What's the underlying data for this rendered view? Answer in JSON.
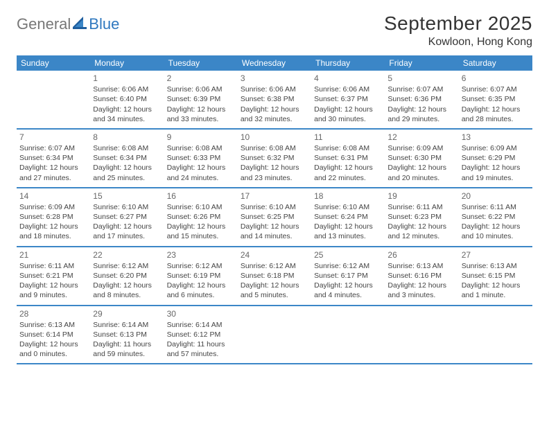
{
  "logo": {
    "text1": "General",
    "text2": "Blue"
  },
  "title": "September 2025",
  "location": "Kowloon, Hong Kong",
  "colors": {
    "header_bg": "#3b86c7",
    "header_text": "#ffffff",
    "rule": "#3b86c7",
    "logo_gray": "#777777",
    "logo_blue": "#2f78bf",
    "body_text": "#444444",
    "daynum": "#666666",
    "background": "#ffffff"
  },
  "typography": {
    "title_fontsize": 28,
    "location_fontsize": 16,
    "weekday_fontsize": 12,
    "daynum_fontsize": 12,
    "body_fontsize": 10.5,
    "logo_fontsize": 22
  },
  "weekdays": [
    "Sunday",
    "Monday",
    "Tuesday",
    "Wednesday",
    "Thursday",
    "Friday",
    "Saturday"
  ],
  "weeks": [
    [
      {
        "num": "",
        "lines": []
      },
      {
        "num": "1",
        "lines": [
          "Sunrise: 6:06 AM",
          "Sunset: 6:40 PM",
          "Daylight: 12 hours and 34 minutes."
        ]
      },
      {
        "num": "2",
        "lines": [
          "Sunrise: 6:06 AM",
          "Sunset: 6:39 PM",
          "Daylight: 12 hours and 33 minutes."
        ]
      },
      {
        "num": "3",
        "lines": [
          "Sunrise: 6:06 AM",
          "Sunset: 6:38 PM",
          "Daylight: 12 hours and 32 minutes."
        ]
      },
      {
        "num": "4",
        "lines": [
          "Sunrise: 6:06 AM",
          "Sunset: 6:37 PM",
          "Daylight: 12 hours and 30 minutes."
        ]
      },
      {
        "num": "5",
        "lines": [
          "Sunrise: 6:07 AM",
          "Sunset: 6:36 PM",
          "Daylight: 12 hours and 29 minutes."
        ]
      },
      {
        "num": "6",
        "lines": [
          "Sunrise: 6:07 AM",
          "Sunset: 6:35 PM",
          "Daylight: 12 hours and 28 minutes."
        ]
      }
    ],
    [
      {
        "num": "7",
        "lines": [
          "Sunrise: 6:07 AM",
          "Sunset: 6:34 PM",
          "Daylight: 12 hours and 27 minutes."
        ]
      },
      {
        "num": "8",
        "lines": [
          "Sunrise: 6:08 AM",
          "Sunset: 6:34 PM",
          "Daylight: 12 hours and 25 minutes."
        ]
      },
      {
        "num": "9",
        "lines": [
          "Sunrise: 6:08 AM",
          "Sunset: 6:33 PM",
          "Daylight: 12 hours and 24 minutes."
        ]
      },
      {
        "num": "10",
        "lines": [
          "Sunrise: 6:08 AM",
          "Sunset: 6:32 PM",
          "Daylight: 12 hours and 23 minutes."
        ]
      },
      {
        "num": "11",
        "lines": [
          "Sunrise: 6:08 AM",
          "Sunset: 6:31 PM",
          "Daylight: 12 hours and 22 minutes."
        ]
      },
      {
        "num": "12",
        "lines": [
          "Sunrise: 6:09 AM",
          "Sunset: 6:30 PM",
          "Daylight: 12 hours and 20 minutes."
        ]
      },
      {
        "num": "13",
        "lines": [
          "Sunrise: 6:09 AM",
          "Sunset: 6:29 PM",
          "Daylight: 12 hours and 19 minutes."
        ]
      }
    ],
    [
      {
        "num": "14",
        "lines": [
          "Sunrise: 6:09 AM",
          "Sunset: 6:28 PM",
          "Daylight: 12 hours and 18 minutes."
        ]
      },
      {
        "num": "15",
        "lines": [
          "Sunrise: 6:10 AM",
          "Sunset: 6:27 PM",
          "Daylight: 12 hours and 17 minutes."
        ]
      },
      {
        "num": "16",
        "lines": [
          "Sunrise: 6:10 AM",
          "Sunset: 6:26 PM",
          "Daylight: 12 hours and 15 minutes."
        ]
      },
      {
        "num": "17",
        "lines": [
          "Sunrise: 6:10 AM",
          "Sunset: 6:25 PM",
          "Daylight: 12 hours and 14 minutes."
        ]
      },
      {
        "num": "18",
        "lines": [
          "Sunrise: 6:10 AM",
          "Sunset: 6:24 PM",
          "Daylight: 12 hours and 13 minutes."
        ]
      },
      {
        "num": "19",
        "lines": [
          "Sunrise: 6:11 AM",
          "Sunset: 6:23 PM",
          "Daylight: 12 hours and 12 minutes."
        ]
      },
      {
        "num": "20",
        "lines": [
          "Sunrise: 6:11 AM",
          "Sunset: 6:22 PM",
          "Daylight: 12 hours and 10 minutes."
        ]
      }
    ],
    [
      {
        "num": "21",
        "lines": [
          "Sunrise: 6:11 AM",
          "Sunset: 6:21 PM",
          "Daylight: 12 hours and 9 minutes."
        ]
      },
      {
        "num": "22",
        "lines": [
          "Sunrise: 6:12 AM",
          "Sunset: 6:20 PM",
          "Daylight: 12 hours and 8 minutes."
        ]
      },
      {
        "num": "23",
        "lines": [
          "Sunrise: 6:12 AM",
          "Sunset: 6:19 PM",
          "Daylight: 12 hours and 6 minutes."
        ]
      },
      {
        "num": "24",
        "lines": [
          "Sunrise: 6:12 AM",
          "Sunset: 6:18 PM",
          "Daylight: 12 hours and 5 minutes."
        ]
      },
      {
        "num": "25",
        "lines": [
          "Sunrise: 6:12 AM",
          "Sunset: 6:17 PM",
          "Daylight: 12 hours and 4 minutes."
        ]
      },
      {
        "num": "26",
        "lines": [
          "Sunrise: 6:13 AM",
          "Sunset: 6:16 PM",
          "Daylight: 12 hours and 3 minutes."
        ]
      },
      {
        "num": "27",
        "lines": [
          "Sunrise: 6:13 AM",
          "Sunset: 6:15 PM",
          "Daylight: 12 hours and 1 minute."
        ]
      }
    ],
    [
      {
        "num": "28",
        "lines": [
          "Sunrise: 6:13 AM",
          "Sunset: 6:14 PM",
          "Daylight: 12 hours and 0 minutes."
        ]
      },
      {
        "num": "29",
        "lines": [
          "Sunrise: 6:14 AM",
          "Sunset: 6:13 PM",
          "Daylight: 11 hours and 59 minutes."
        ]
      },
      {
        "num": "30",
        "lines": [
          "Sunrise: 6:14 AM",
          "Sunset: 6:12 PM",
          "Daylight: 11 hours and 57 minutes."
        ]
      },
      {
        "num": "",
        "lines": []
      },
      {
        "num": "",
        "lines": []
      },
      {
        "num": "",
        "lines": []
      },
      {
        "num": "",
        "lines": []
      }
    ]
  ]
}
